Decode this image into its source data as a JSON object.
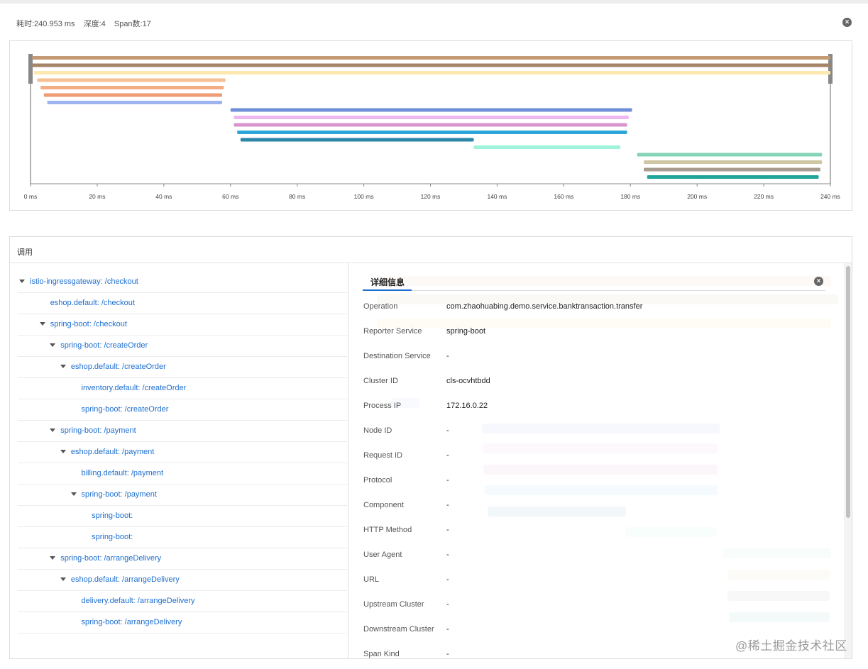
{
  "header": {
    "duration": "耗时:240.953 ms",
    "depth": "深度:4",
    "span_count": "Span数:17"
  },
  "chart_data": {
    "type": "bar",
    "orientation": "horizontal",
    "x_unit": "ms",
    "xlim": [
      0,
      240
    ],
    "x_ticks": [
      "0 ms",
      "20 ms",
      "40 ms",
      "60 ms",
      "80 ms",
      "100 ms",
      "120 ms",
      "140 ms",
      "160 ms",
      "180 ms",
      "200 ms",
      "220 ms",
      "240 ms"
    ],
    "spans": [
      {
        "start": 0.5,
        "end": 240.0,
        "color": "#c49a74"
      },
      {
        "start": 0.5,
        "end": 240.0,
        "color": "#a68468"
      },
      {
        "start": 1.0,
        "end": 240.0,
        "color": "#fde9ad"
      },
      {
        "start": 2.0,
        "end": 58.5,
        "color": "#f6c093"
      },
      {
        "start": 3.0,
        "end": 58.0,
        "color": "#f3ac83"
      },
      {
        "start": 4.0,
        "end": 57.5,
        "color": "#ef9c76"
      },
      {
        "start": 5.0,
        "end": 57.5,
        "color": "#9db4f0"
      },
      {
        "start": 60.0,
        "end": 180.5,
        "color": "#6f8fd8"
      },
      {
        "start": 61.0,
        "end": 179.5,
        "color": "#f0b6f0"
      },
      {
        "start": 61.0,
        "end": 179.0,
        "color": "#d994cf"
      },
      {
        "start": 62.0,
        "end": 179.0,
        "color": "#2ea5d8"
      },
      {
        "start": 63.0,
        "end": 133.0,
        "color": "#2b86a8"
      },
      {
        "start": 133.0,
        "end": 177.0,
        "color": "#9ff3da"
      },
      {
        "start": 182.0,
        "end": 237.5,
        "color": "#84d4b6"
      },
      {
        "start": 184.0,
        "end": 237.5,
        "color": "#cfc7a4"
      },
      {
        "start": 184.0,
        "end": 237.0,
        "color": "#a89c91"
      },
      {
        "start": 185.0,
        "end": 236.5,
        "color": "#1fa59a"
      }
    ]
  },
  "calls": {
    "title": "调用",
    "rows": [
      {
        "label": "istio-ingressgateway: /checkout",
        "depth": 0,
        "caret": true
      },
      {
        "label": "eshop.default: /checkout",
        "depth": 2,
        "caret": false
      },
      {
        "label": "spring-boot: /checkout",
        "depth": 2,
        "caret": true
      },
      {
        "label": "spring-boot: /createOrder",
        "depth": 3,
        "caret": true
      },
      {
        "label": "eshop.default: /createOrder",
        "depth": 4,
        "caret": true
      },
      {
        "label": "inventory.default: /createOrder",
        "depth": 5,
        "caret": false
      },
      {
        "label": "spring-boot: /createOrder",
        "depth": 5,
        "caret": false
      },
      {
        "label": "spring-boot: /payment",
        "depth": 3,
        "caret": true
      },
      {
        "label": "eshop.default: /payment",
        "depth": 4,
        "caret": true
      },
      {
        "label": "billing.default: /payment",
        "depth": 5,
        "caret": false
      },
      {
        "label": "spring-boot: /payment",
        "depth": 5,
        "caret": true
      },
      {
        "label": "spring-boot:",
        "depth": 6,
        "caret": false
      },
      {
        "label": "spring-boot:",
        "depth": 6,
        "caret": false
      },
      {
        "label": "spring-boot: /arrangeDelivery",
        "depth": 3,
        "caret": true
      },
      {
        "label": "eshop.default: /arrangeDelivery",
        "depth": 4,
        "caret": true
      },
      {
        "label": "delivery.default: /arrangeDelivery",
        "depth": 5,
        "caret": false
      },
      {
        "label": "spring-boot: /arrangeDelivery",
        "depth": 5,
        "caret": false
      }
    ]
  },
  "detail": {
    "tab": "详细信息",
    "fields": [
      {
        "key": "Operation",
        "value": "com.zhaohuabing.demo.service.banktransaction.transfer"
      },
      {
        "key": "Reporter Service",
        "value": "spring-boot"
      },
      {
        "key": "Destination Service",
        "value": "-"
      },
      {
        "key": "Cluster ID",
        "value": "cls-ocvhtbdd"
      },
      {
        "key": "Process IP",
        "value": "172.16.0.22"
      },
      {
        "key": "Node ID",
        "value": "-"
      },
      {
        "key": "Request ID",
        "value": "-"
      },
      {
        "key": "Protocol",
        "value": "-"
      },
      {
        "key": "Component",
        "value": "-"
      },
      {
        "key": "HTTP Method",
        "value": "-"
      },
      {
        "key": "User Agent",
        "value": "-"
      },
      {
        "key": "URL",
        "value": "-"
      },
      {
        "key": "Upstream Cluster",
        "value": "-"
      },
      {
        "key": "Downstream Cluster",
        "value": "-"
      },
      {
        "key": "Span Kind",
        "value": "-"
      }
    ]
  },
  "watermark": "@稀土掘金技术社区"
}
